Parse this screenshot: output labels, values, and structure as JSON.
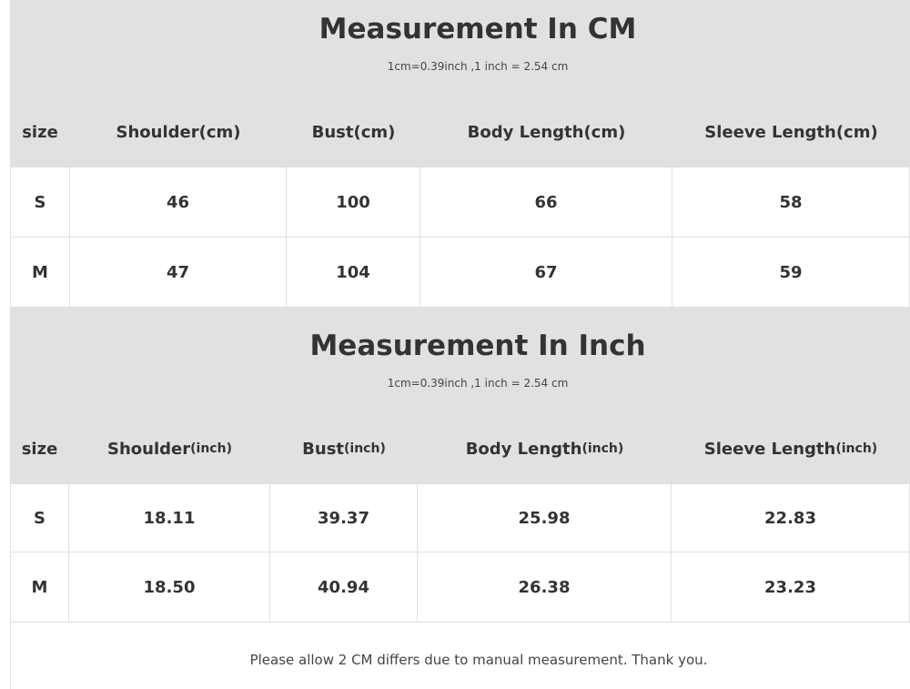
{
  "cm": {
    "title": "Measurement In CM",
    "subtitle": "1cm=0.39inch ,1 inch = 2.54 cm",
    "headers": [
      "size",
      "Shoulder(cm)",
      "Bust(cm)",
      "Body Length(cm)",
      "Sleeve Length(cm)"
    ],
    "rows": [
      [
        "S",
        "46",
        "100",
        "66",
        "58"
      ],
      [
        "M",
        "47",
        "104",
        "67",
        "59"
      ]
    ]
  },
  "inch": {
    "title": "Measurement In Inch",
    "subtitle": "1cm=0.39inch ,1 inch = 2.54 cm",
    "headers": [
      {
        "main": "size",
        "unit": ""
      },
      {
        "main": "Shoulder",
        "unit": "(inch)"
      },
      {
        "main": "Bust ",
        "unit": "(inch)"
      },
      {
        "main": "Body Length",
        "unit": "(inch)"
      },
      {
        "main": "Sleeve Length",
        "unit": "(inch)"
      }
    ],
    "rows": [
      [
        "S",
        "18.11",
        "39.37",
        "25.98",
        "22.83"
      ],
      [
        "M",
        "18.50",
        "40.94",
        "26.38",
        "23.23"
      ]
    ]
  },
  "footer": "Please allow 2 CM differs due to manual measurement. Thank you."
}
